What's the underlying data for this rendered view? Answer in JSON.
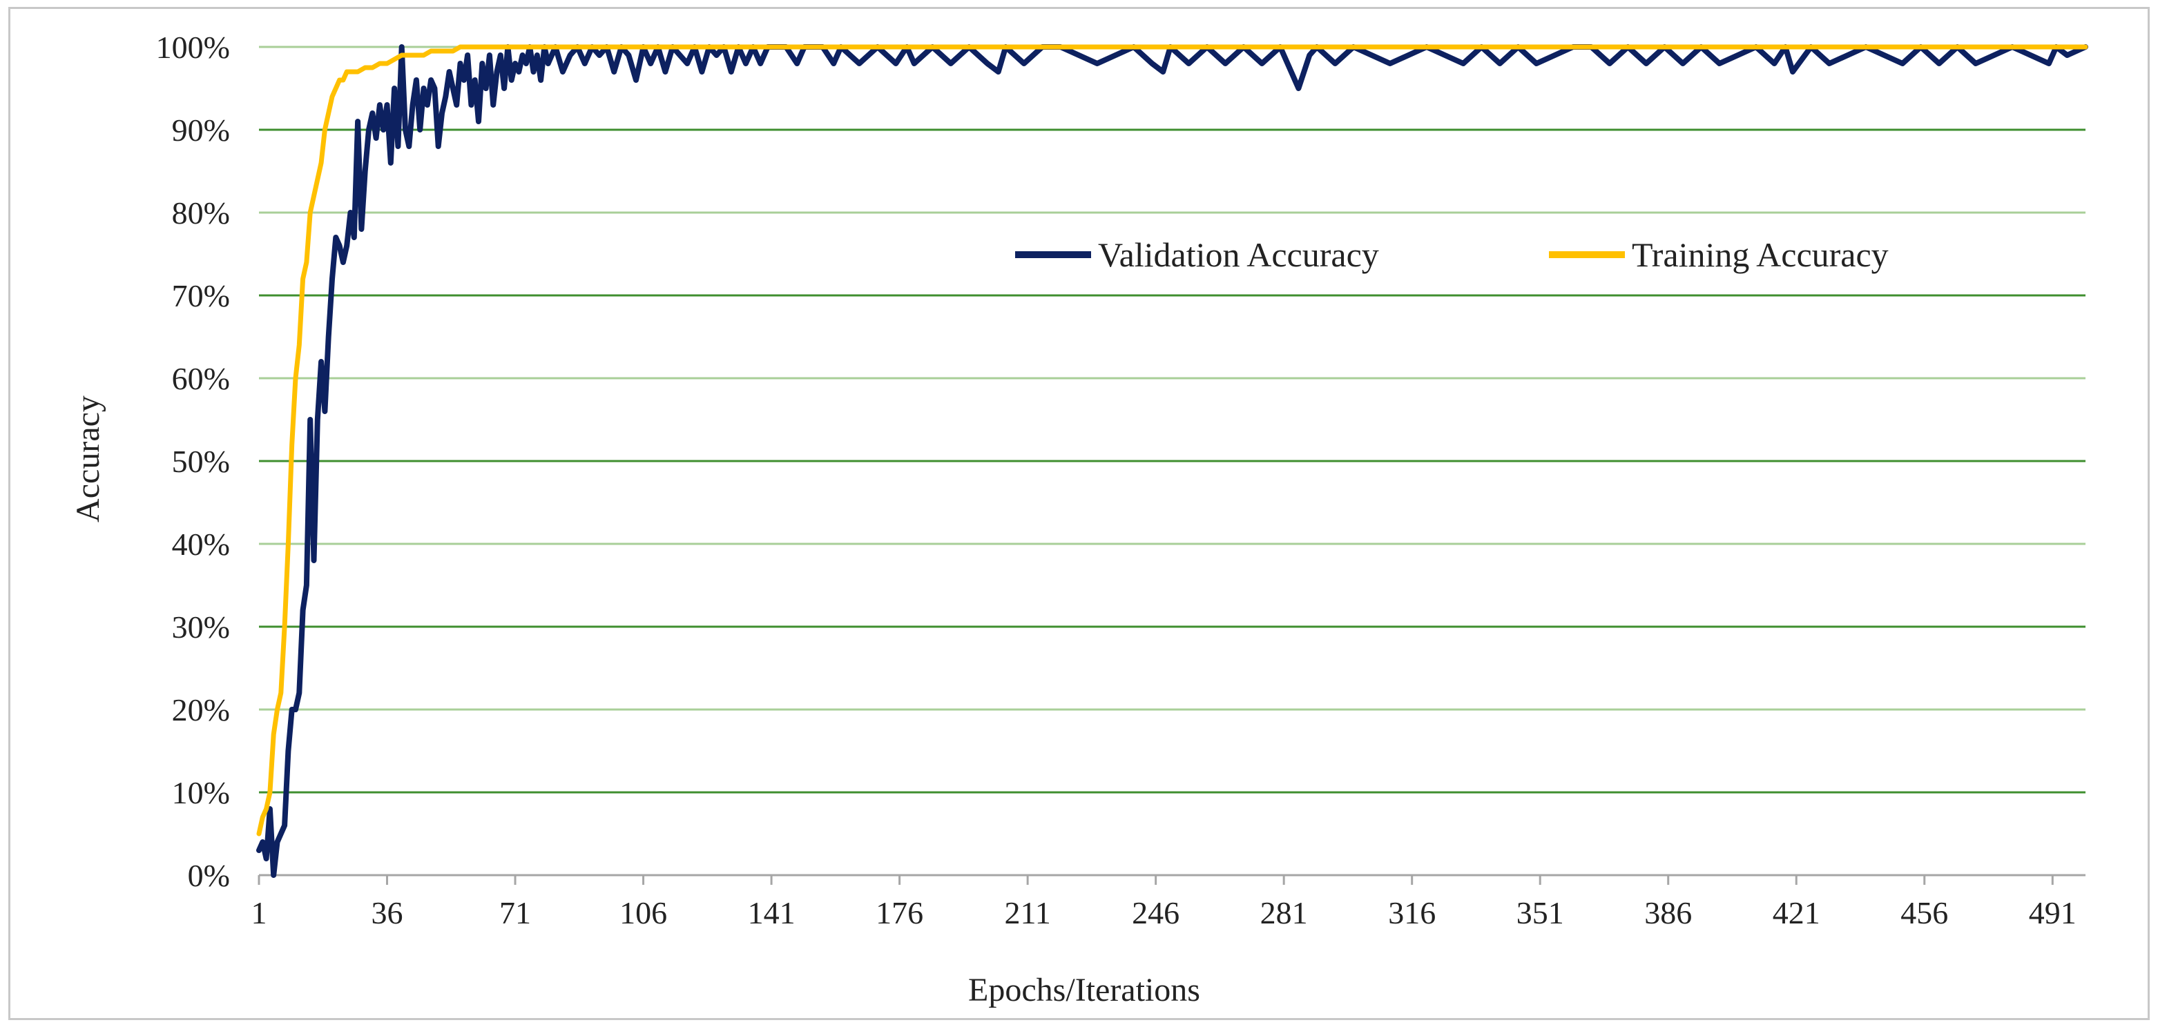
{
  "chart_data": {
    "type": "line",
    "xlabel": "Epochs/Iterations",
    "ylabel": "Accuracy",
    "xlim": [
      1,
      500
    ],
    "ylim": [
      0,
      1
    ],
    "x_tick_labels": [
      "1",
      "36",
      "71",
      "106",
      "141",
      "176",
      "211",
      "246",
      "281",
      "316",
      "351",
      "386",
      "421",
      "456",
      "491"
    ],
    "y_tick_labels": [
      "0%",
      "10%",
      "20%",
      "30%",
      "40%",
      "50%",
      "60%",
      "70%",
      "80%",
      "90%",
      "100%"
    ],
    "grid": true,
    "legend_position": "right-center-top",
    "series": [
      {
        "name": "Validation Accuracy",
        "color": "#0d2160",
        "x": [
          1,
          2,
          3,
          4,
          5,
          6,
          7,
          8,
          9,
          10,
          11,
          12,
          13,
          14,
          15,
          16,
          17,
          18,
          19,
          20,
          21,
          22,
          23,
          24,
          25,
          26,
          27,
          28,
          29,
          30,
          31,
          32,
          33,
          34,
          35,
          36,
          37,
          38,
          39,
          40,
          41,
          42,
          43,
          44,
          45,
          46,
          47,
          48,
          49,
          50,
          51,
          52,
          53,
          54,
          55,
          56,
          57,
          58,
          59,
          60,
          61,
          62,
          63,
          64,
          65,
          66,
          67,
          68,
          69,
          70,
          71,
          72,
          73,
          74,
          75,
          76,
          77,
          78,
          79,
          80,
          82,
          84,
          86,
          88,
          90,
          92,
          94,
          96,
          98,
          100,
          102,
          104,
          106,
          108,
          110,
          112,
          114,
          116,
          118,
          120,
          122,
          124,
          126,
          128,
          130,
          132,
          134,
          136,
          138,
          140,
          145,
          148,
          150,
          155,
          158,
          160,
          165,
          170,
          175,
          178,
          180,
          185,
          190,
          195,
          200,
          203,
          205,
          210,
          215,
          220,
          230,
          240,
          245,
          248,
          250,
          255,
          260,
          265,
          270,
          275,
          280,
          283,
          285,
          288,
          290,
          295,
          300,
          310,
          320,
          330,
          335,
          340,
          345,
          350,
          360,
          365,
          370,
          375,
          380,
          385,
          390,
          395,
          400,
          410,
          415,
          418,
          420,
          425,
          430,
          440,
          450,
          455,
          460,
          465,
          470,
          480,
          490,
          492,
          495,
          500
        ],
        "values": [
          0.03,
          0.04,
          0.02,
          0.08,
          0.0,
          0.04,
          0.05,
          0.06,
          0.15,
          0.2,
          0.2,
          0.22,
          0.32,
          0.35,
          0.55,
          0.38,
          0.55,
          0.62,
          0.56,
          0.65,
          0.72,
          0.77,
          0.76,
          0.74,
          0.76,
          0.8,
          0.77,
          0.91,
          0.78,
          0.85,
          0.9,
          0.92,
          0.89,
          0.93,
          0.9,
          0.93,
          0.86,
          0.95,
          0.88,
          1.0,
          0.9,
          0.88,
          0.93,
          0.96,
          0.9,
          0.95,
          0.93,
          0.96,
          0.95,
          0.88,
          0.92,
          0.94,
          0.97,
          0.95,
          0.93,
          0.98,
          0.96,
          0.99,
          0.93,
          0.96,
          0.91,
          0.98,
          0.95,
          0.99,
          0.93,
          0.97,
          0.99,
          0.95,
          1.0,
          0.96,
          0.98,
          0.97,
          0.99,
          0.98,
          1.0,
          0.97,
          0.99,
          0.96,
          1.0,
          0.98,
          1.0,
          0.97,
          0.99,
          1.0,
          0.98,
          1.0,
          0.99,
          1.0,
          0.97,
          1.0,
          0.99,
          0.96,
          1.0,
          0.98,
          1.0,
          0.97,
          1.0,
          0.99,
          0.98,
          1.0,
          0.97,
          1.0,
          0.99,
          1.0,
          0.97,
          1.0,
          0.98,
          1.0,
          0.98,
          1.0,
          1.0,
          0.98,
          1.0,
          1.0,
          0.98,
          1.0,
          0.98,
          1.0,
          0.98,
          1.0,
          0.98,
          1.0,
          0.98,
          1.0,
          0.98,
          0.97,
          1.0,
          0.98,
          1.0,
          1.0,
          0.98,
          1.0,
          0.98,
          0.97,
          1.0,
          0.98,
          1.0,
          0.98,
          1.0,
          0.98,
          1.0,
          0.97,
          0.95,
          0.99,
          1.0,
          0.98,
          1.0,
          0.98,
          1.0,
          0.98,
          1.0,
          0.98,
          1.0,
          0.98,
          1.0,
          1.0,
          0.98,
          1.0,
          0.98,
          1.0,
          0.98,
          1.0,
          0.98,
          1.0,
          0.98,
          1.0,
          0.97,
          1.0,
          0.98,
          1.0,
          0.98,
          1.0,
          0.98,
          1.0,
          0.98,
          1.0,
          0.98,
          1.0,
          0.99,
          1.0
        ]
      },
      {
        "name": "Training Accuracy",
        "color": "#ffc000",
        "x": [
          1,
          2,
          3,
          4,
          5,
          6,
          7,
          8,
          9,
          10,
          11,
          12,
          13,
          14,
          15,
          16,
          17,
          18,
          19,
          20,
          21,
          22,
          23,
          24,
          25,
          26,
          28,
          30,
          32,
          34,
          36,
          38,
          40,
          42,
          44,
          46,
          48,
          50,
          52,
          54,
          56,
          58,
          60,
          62,
          64,
          66,
          68,
          70,
          75,
          80,
          90,
          100,
          150,
          200,
          300,
          400,
          500
        ],
        "values": [
          0.05,
          0.07,
          0.08,
          0.1,
          0.17,
          0.2,
          0.22,
          0.3,
          0.4,
          0.52,
          0.6,
          0.64,
          0.72,
          0.74,
          0.8,
          0.82,
          0.84,
          0.86,
          0.9,
          0.92,
          0.94,
          0.95,
          0.96,
          0.96,
          0.97,
          0.97,
          0.97,
          0.975,
          0.975,
          0.98,
          0.98,
          0.985,
          0.99,
          0.99,
          0.99,
          0.99,
          0.995,
          0.995,
          0.995,
          0.995,
          1.0,
          1.0,
          1.0,
          1.0,
          1.0,
          1.0,
          1.0,
          1.0,
          1.0,
          1.0,
          1.0,
          1.0,
          1.0,
          1.0,
          1.0,
          1.0,
          1.0
        ]
      }
    ]
  }
}
